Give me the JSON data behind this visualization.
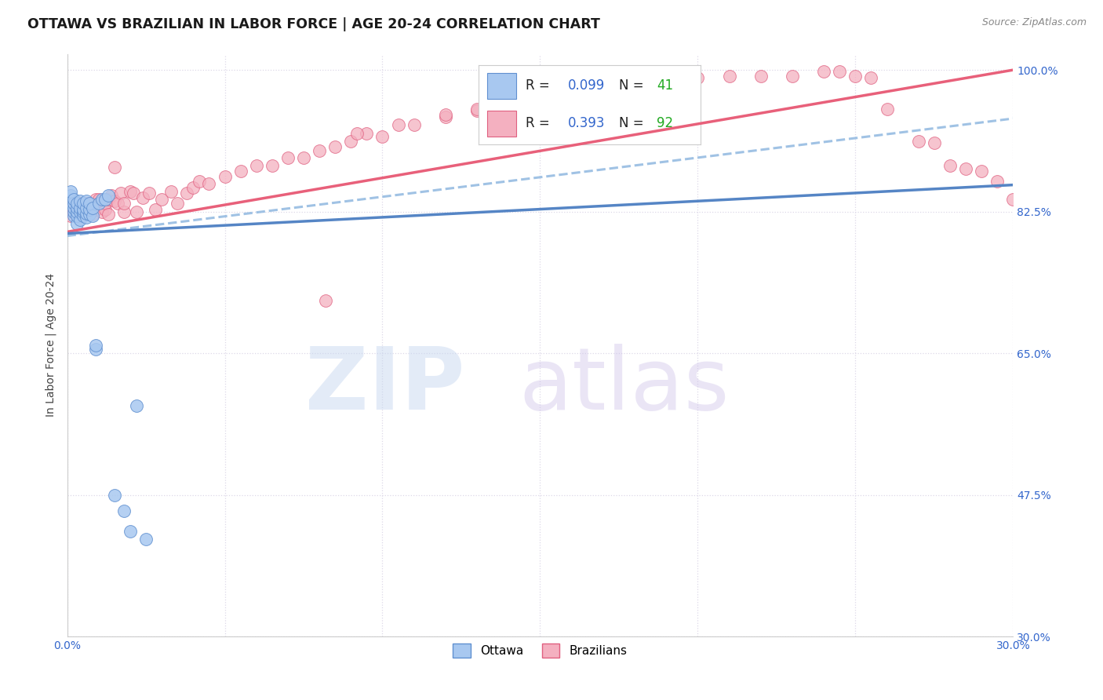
{
  "title": "OTTAWA VS BRAZILIAN IN LABOR FORCE | AGE 20-24 CORRELATION CHART",
  "source": "Source: ZipAtlas.com",
  "ylabel": "In Labor Force | Age 20-24",
  "xlim": [
    0.0,
    0.3
  ],
  "ylim": [
    0.3,
    1.02
  ],
  "xticks": [
    0.0,
    0.05,
    0.1,
    0.15,
    0.2,
    0.25,
    0.3
  ],
  "xticklabels": [
    "0.0%",
    "",
    "",
    "",
    "",
    "",
    "30.0%"
  ],
  "yticks": [
    0.3,
    0.475,
    0.65,
    0.825,
    1.0
  ],
  "yticklabels": [
    "30.0%",
    "47.5%",
    "65.0%",
    "82.5%",
    "100.0%"
  ],
  "ottawa_R": 0.099,
  "ottawa_N": 41,
  "brazilian_R": 0.393,
  "brazilian_N": 92,
  "ottawa_color": "#a8c8f0",
  "brazilian_color": "#f4b0c0",
  "ottawa_edge_color": "#6090d0",
  "brazilian_edge_color": "#e06080",
  "ottawa_line_color": "#5585c5",
  "brazilian_line_color": "#e8607a",
  "trendline_dash_color": "#90b8e0",
  "legend_R_color": "#3366cc",
  "legend_N_color": "#22aa22",
  "background_color": "#ffffff",
  "grid_color": "#ddd8e8",
  "ottawa_x": [
    0.001,
    0.001,
    0.001,
    0.002,
    0.002,
    0.002,
    0.002,
    0.002,
    0.003,
    0.003,
    0.003,
    0.003,
    0.003,
    0.004,
    0.004,
    0.004,
    0.004,
    0.005,
    0.005,
    0.005,
    0.005,
    0.006,
    0.006,
    0.006,
    0.006,
    0.007,
    0.007,
    0.007,
    0.008,
    0.008,
    0.009,
    0.009,
    0.01,
    0.011,
    0.012,
    0.013,
    0.015,
    0.018,
    0.02,
    0.022,
    0.025
  ],
  "ottawa_y": [
    0.835,
    0.845,
    0.85,
    0.82,
    0.825,
    0.83,
    0.835,
    0.84,
    0.81,
    0.82,
    0.825,
    0.83,
    0.835,
    0.815,
    0.825,
    0.83,
    0.838,
    0.82,
    0.825,
    0.828,
    0.835,
    0.818,
    0.823,
    0.83,
    0.838,
    0.822,
    0.828,
    0.835,
    0.82,
    0.83,
    0.655,
    0.66,
    0.835,
    0.84,
    0.84,
    0.845,
    0.475,
    0.455,
    0.43,
    0.585,
    0.42
  ],
  "brazilian_x": [
    0.001,
    0.002,
    0.002,
    0.003,
    0.003,
    0.004,
    0.004,
    0.005,
    0.005,
    0.006,
    0.006,
    0.007,
    0.007,
    0.008,
    0.008,
    0.009,
    0.009,
    0.01,
    0.01,
    0.011,
    0.011,
    0.012,
    0.012,
    0.013,
    0.013,
    0.014,
    0.015,
    0.015,
    0.016,
    0.017,
    0.018,
    0.018,
    0.02,
    0.021,
    0.022,
    0.024,
    0.026,
    0.028,
    0.03,
    0.033,
    0.035,
    0.038,
    0.04,
    0.042,
    0.045,
    0.05,
    0.055,
    0.06,
    0.065,
    0.07,
    0.075,
    0.08,
    0.085,
    0.09,
    0.095,
    0.1,
    0.11,
    0.12,
    0.13,
    0.14,
    0.15,
    0.16,
    0.17,
    0.18,
    0.19,
    0.2,
    0.21,
    0.22,
    0.23,
    0.24,
    0.25,
    0.26,
    0.27,
    0.28,
    0.29,
    0.295,
    0.3,
    0.145,
    0.155,
    0.165,
    0.185,
    0.195,
    0.245,
    0.255,
    0.275,
    0.285,
    0.12,
    0.13,
    0.175,
    0.082,
    0.092,
    0.105
  ],
  "brazilian_y": [
    0.82,
    0.825,
    0.835,
    0.82,
    0.832,
    0.818,
    0.835,
    0.825,
    0.832,
    0.822,
    0.835,
    0.828,
    0.835,
    0.822,
    0.832,
    0.84,
    0.828,
    0.84,
    0.835,
    0.825,
    0.838,
    0.828,
    0.835,
    0.822,
    0.84,
    0.845,
    0.88,
    0.838,
    0.835,
    0.848,
    0.825,
    0.835,
    0.85,
    0.848,
    0.825,
    0.842,
    0.848,
    0.828,
    0.84,
    0.85,
    0.835,
    0.848,
    0.855,
    0.862,
    0.86,
    0.868,
    0.875,
    0.882,
    0.882,
    0.892,
    0.892,
    0.9,
    0.905,
    0.912,
    0.922,
    0.918,
    0.932,
    0.942,
    0.95,
    0.958,
    0.965,
    0.97,
    0.975,
    0.982,
    0.985,
    0.99,
    0.992,
    0.992,
    0.992,
    0.998,
    0.992,
    0.952,
    0.912,
    0.882,
    0.875,
    0.862,
    0.84,
    0.962,
    0.968,
    0.97,
    0.98,
    0.985,
    0.998,
    0.99,
    0.91,
    0.878,
    0.945,
    0.952,
    0.978,
    0.715,
    0.922,
    0.932
  ],
  "ottawa_trend_x": [
    0.0,
    0.3
  ],
  "ottawa_trend_y": [
    0.798,
    0.858
  ],
  "brazilian_trend_x": [
    0.0,
    0.3
  ],
  "brazilian_trend_y": [
    0.8,
    1.0
  ],
  "dash_trend_x": [
    0.0,
    0.3
  ],
  "dash_trend_y": [
    0.795,
    0.94
  ]
}
